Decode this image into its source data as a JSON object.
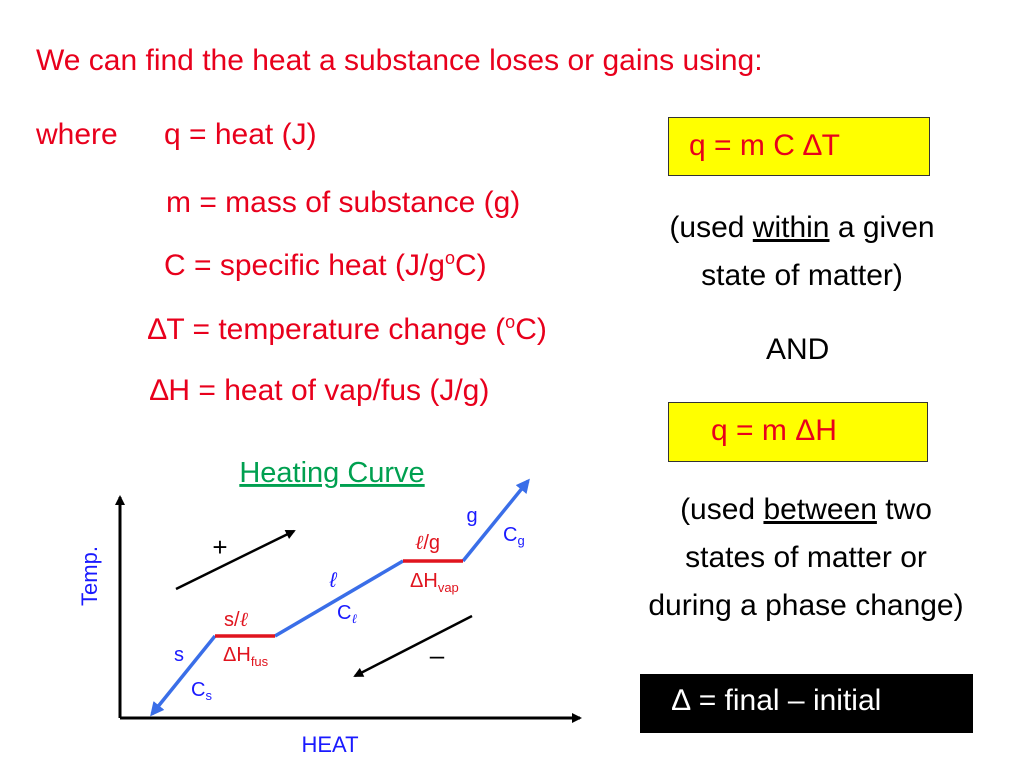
{
  "heading": "We can find the heat a substance loses or gains using:",
  "definitions": {
    "where": "where",
    "q": "q = heat (J)",
    "m": "m = mass of substance (g)",
    "c_prefix": "C  = specific heat (J/g",
    "c_sup": "o",
    "c_suffix": "C)",
    "dt_symbol": "∆",
    "dt_prefix": "T = temperature change (",
    "dt_sup": "o",
    "dt_suffix": "C)",
    "dh_symbol": "∆",
    "dh_text": "H =  heat of vap/fus (J/g)"
  },
  "formula1": {
    "text": "q  =  m C ",
    "symbol": "∆",
    "tail": "T",
    "note_open": "(used ",
    "note_key": "within",
    "note_rest": " a given",
    "note_line2": "state of matter)"
  },
  "and_label": "AND",
  "formula2": {
    "text": "q  =  m ΔH",
    "note_open": "(used ",
    "note_key": "between",
    "note_rest": " two",
    "note_line2": "states of matter or",
    "note_line3": "during a phase change)"
  },
  "delta_def": {
    "symbol": "∆",
    "text": " = final – initial"
  },
  "curve": {
    "title": "Heating Curve",
    "y_axis": "Temp.",
    "x_axis": "HEAT",
    "plus": "+",
    "minus": "–",
    "s": "s",
    "cs_main": "C",
    "cs_sub": "s",
    "sl_prefix": "s/",
    "ell": "ℓ",
    "dhfus_main": "ΔH",
    "dhfus_sub": "fus",
    "l": "ℓ",
    "cl_main": "C",
    "cl_sub": "ℓ",
    "lg_suffix": "/g",
    "dhvap_main": "ΔH",
    "dhvap_sub": "vap",
    "g": "g",
    "cg_main": "C",
    "cg_sub": "g"
  },
  "colors": {
    "text_red": "#e8001c",
    "text_blue": "#1a1aff",
    "title_green": "#00a050",
    "curve_blue": "#3a6ee8",
    "plateau_red": "#e0141e",
    "box_yellow": "#ffff00"
  }
}
